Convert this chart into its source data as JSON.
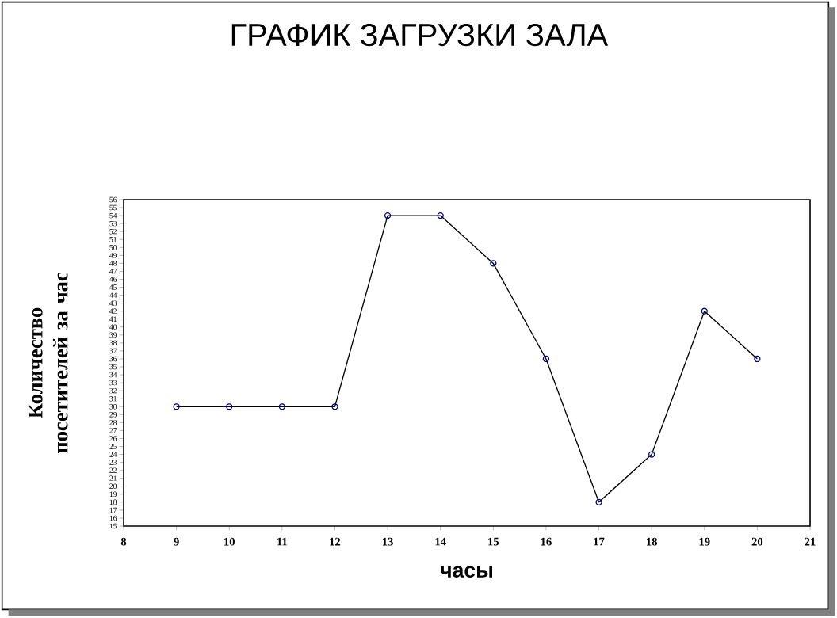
{
  "chart_data": {
    "type": "line",
    "title": "ГРАФИК ЗАГРУЗКИ ЗАЛА",
    "xlabel": "часы",
    "ylabel": "Количество посетителей за час",
    "x": [
      9,
      10,
      11,
      12,
      13,
      14,
      15,
      16,
      17,
      18,
      19,
      20
    ],
    "series": [
      {
        "color": "#000000",
        "values": [
          30,
          30,
          30,
          30,
          54,
          54,
          48,
          36,
          18,
          24,
          42,
          36
        ]
      }
    ],
    "xlim": [
      8,
      21
    ],
    "ylim": [
      15,
      56
    ],
    "xticks": [
      8,
      9,
      10,
      11,
      12,
      13,
      14,
      15,
      16,
      17,
      18,
      19,
      20,
      21
    ],
    "yticks": [
      15,
      16,
      17,
      18,
      19,
      20,
      21,
      22,
      23,
      24,
      25,
      26,
      27,
      28,
      29,
      30,
      31,
      32,
      33,
      34,
      35,
      36,
      37,
      38,
      39,
      40,
      41,
      42,
      43,
      44,
      45,
      46,
      47,
      48,
      49,
      50,
      51,
      52,
      53,
      54,
      55,
      56
    ],
    "marker": "circle",
    "line_style": "solid",
    "grid": false
  }
}
